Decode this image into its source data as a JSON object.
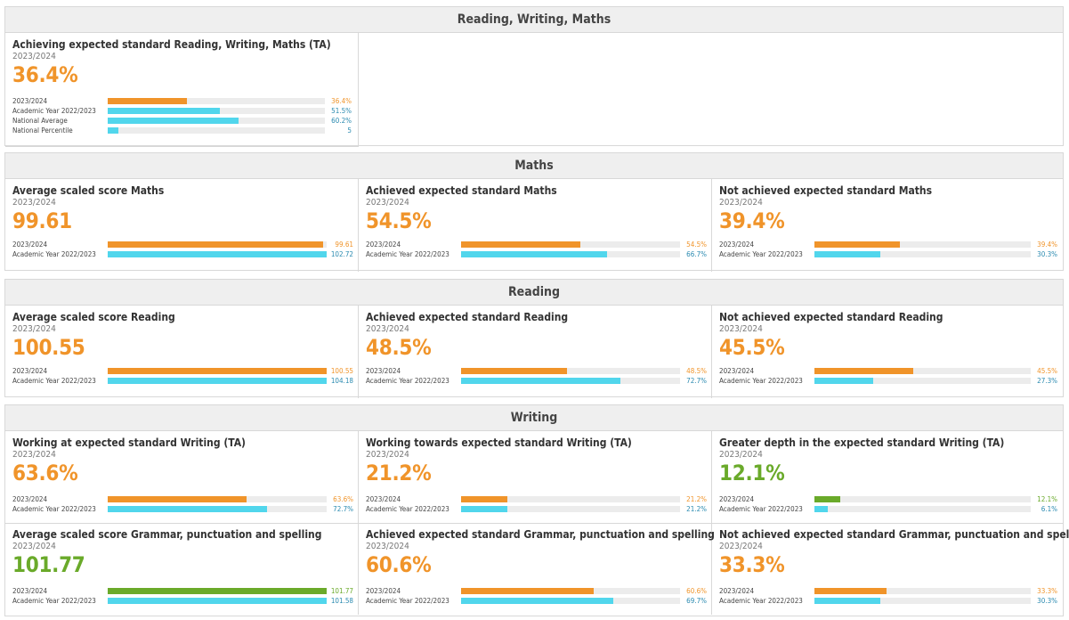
{
  "colors": {
    "orange": "#f0942a",
    "cyan": "#51d6ec",
    "green": "#6aaa2a",
    "blue_text": "#2a8ab0"
  },
  "sections": [
    {
      "title": "Reading, Writing, Maths",
      "cards": [
        {
          "title": "Achieving expected standard Reading, Writing, Maths (TA)",
          "subtitle": "2023/2024",
          "value": "36.4%",
          "value_color": "orange",
          "bars": [
            {
              "label": "2023/2024",
              "value_text": "36.4%",
              "fraction": 0.364,
              "color": "orange"
            },
            {
              "label": "Academic Year 2022/2023",
              "value_text": "51.5%",
              "fraction": 0.515,
              "color": "cyan"
            },
            {
              "label": "National Average",
              "value_text": "60.2%",
              "fraction": 0.602,
              "color": "cyan"
            },
            {
              "label": "National Percentile",
              "value_text": "5",
              "fraction": 0.05,
              "color": "cyan"
            }
          ]
        }
      ]
    },
    {
      "title": "Maths",
      "cards": [
        {
          "title": "Average scaled score Maths",
          "subtitle": "2023/2024",
          "value": "99.61",
          "value_color": "orange",
          "bars": [
            {
              "label": "2023/2024",
              "value_text": "99.61",
              "fraction": 0.985,
              "color": "orange"
            },
            {
              "label": "Academic Year 2022/2023",
              "value_text": "102.72",
              "fraction": 1.0,
              "color": "cyan"
            }
          ]
        },
        {
          "title": "Achieved expected standard Maths",
          "subtitle": "2023/2024",
          "value": "54.5%",
          "value_color": "orange",
          "bars": [
            {
              "label": "2023/2024",
              "value_text": "54.5%",
              "fraction": 0.545,
              "color": "orange"
            },
            {
              "label": "Academic Year 2022/2023",
              "value_text": "66.7%",
              "fraction": 0.667,
              "color": "cyan"
            }
          ]
        },
        {
          "title": "Not achieved expected standard Maths",
          "subtitle": "2023/2024",
          "value": "39.4%",
          "value_color": "orange",
          "bars": [
            {
              "label": "2023/2024",
              "value_text": "39.4%",
              "fraction": 0.394,
              "color": "orange"
            },
            {
              "label": "Academic Year 2022/2023",
              "value_text": "30.3%",
              "fraction": 0.303,
              "color": "cyan"
            }
          ]
        }
      ]
    },
    {
      "title": "Reading",
      "cards": [
        {
          "title": "Average scaled score Reading",
          "subtitle": "2023/2024",
          "value": "100.55",
          "value_color": "orange",
          "bars": [
            {
              "label": "2023/2024",
              "value_text": "100.55",
              "fraction": 1.0,
              "color": "orange"
            },
            {
              "label": "Academic Year 2022/2023",
              "value_text": "104.18",
              "fraction": 1.0,
              "color": "cyan"
            }
          ]
        },
        {
          "title": "Achieved expected standard Reading",
          "subtitle": "2023/2024",
          "value": "48.5%",
          "value_color": "orange",
          "bars": [
            {
              "label": "2023/2024",
              "value_text": "48.5%",
              "fraction": 0.485,
              "color": "orange"
            },
            {
              "label": "Academic Year 2022/2023",
              "value_text": "72.7%",
              "fraction": 0.727,
              "color": "cyan"
            }
          ]
        },
        {
          "title": "Not achieved expected standard Reading",
          "subtitle": "2023/2024",
          "value": "45.5%",
          "value_color": "orange",
          "bars": [
            {
              "label": "2023/2024",
              "value_text": "45.5%",
              "fraction": 0.455,
              "color": "orange"
            },
            {
              "label": "Academic Year 2022/2023",
              "value_text": "27.3%",
              "fraction": 0.273,
              "color": "cyan"
            }
          ]
        }
      ]
    },
    {
      "title": "Writing",
      "cards": [
        {
          "title": "Working at expected standard Writing (TA)",
          "subtitle": "2023/2024",
          "value": "63.6%",
          "value_color": "orange",
          "bars": [
            {
              "label": "2023/2024",
              "value_text": "63.6%",
              "fraction": 0.636,
              "color": "orange"
            },
            {
              "label": "Academic Year 2022/2023",
              "value_text": "72.7%",
              "fraction": 0.727,
              "color": "cyan"
            }
          ]
        },
        {
          "title": "Working towards expected standard Writing (TA)",
          "subtitle": "2023/2024",
          "value": "21.2%",
          "value_color": "orange",
          "bars": [
            {
              "label": "2023/2024",
              "value_text": "21.2%",
              "fraction": 0.212,
              "color": "orange"
            },
            {
              "label": "Academic Year 2022/2023",
              "value_text": "21.2%",
              "fraction": 0.212,
              "color": "cyan"
            }
          ]
        },
        {
          "title": "Greater depth in the expected standard Writing (TA)",
          "subtitle": "2023/2024",
          "value": "12.1%",
          "value_color": "green",
          "bars": [
            {
              "label": "2023/2024",
              "value_text": "12.1%",
              "fraction": 0.121,
              "color": "green"
            },
            {
              "label": "Academic Year 2022/2023",
              "value_text": "6.1%",
              "fraction": 0.061,
              "color": "cyan"
            }
          ]
        },
        {
          "title": "Average scaled score Grammar, punctuation and spelling",
          "subtitle": "2023/2024",
          "value": "101.77",
          "value_color": "green",
          "bars": [
            {
              "label": "2023/2024",
              "value_text": "101.77",
              "fraction": 1.0,
              "color": "green"
            },
            {
              "label": "Academic Year 2022/2023",
              "value_text": "101.58",
              "fraction": 1.0,
              "color": "cyan"
            }
          ]
        },
        {
          "title": "Achieved expected standard Grammar, punctuation and spelling",
          "subtitle": "2023/2024",
          "value": "60.6%",
          "value_color": "orange",
          "bars": [
            {
              "label": "2023/2024",
              "value_text": "60.6%",
              "fraction": 0.606,
              "color": "orange"
            },
            {
              "label": "Academic Year 2022/2023",
              "value_text": "69.7%",
              "fraction": 0.697,
              "color": "cyan"
            }
          ]
        },
        {
          "title": "Not achieved expected standard Grammar, punctuation and spelling",
          "subtitle": "2023/2024",
          "value": "33.3%",
          "value_color": "orange",
          "bars": [
            {
              "label": "2023/2024",
              "value_text": "33.3%",
              "fraction": 0.333,
              "color": "orange"
            },
            {
              "label": "Academic Year 2022/2023",
              "value_text": "30.3%",
              "fraction": 0.303,
              "color": "cyan"
            }
          ]
        }
      ]
    }
  ]
}
